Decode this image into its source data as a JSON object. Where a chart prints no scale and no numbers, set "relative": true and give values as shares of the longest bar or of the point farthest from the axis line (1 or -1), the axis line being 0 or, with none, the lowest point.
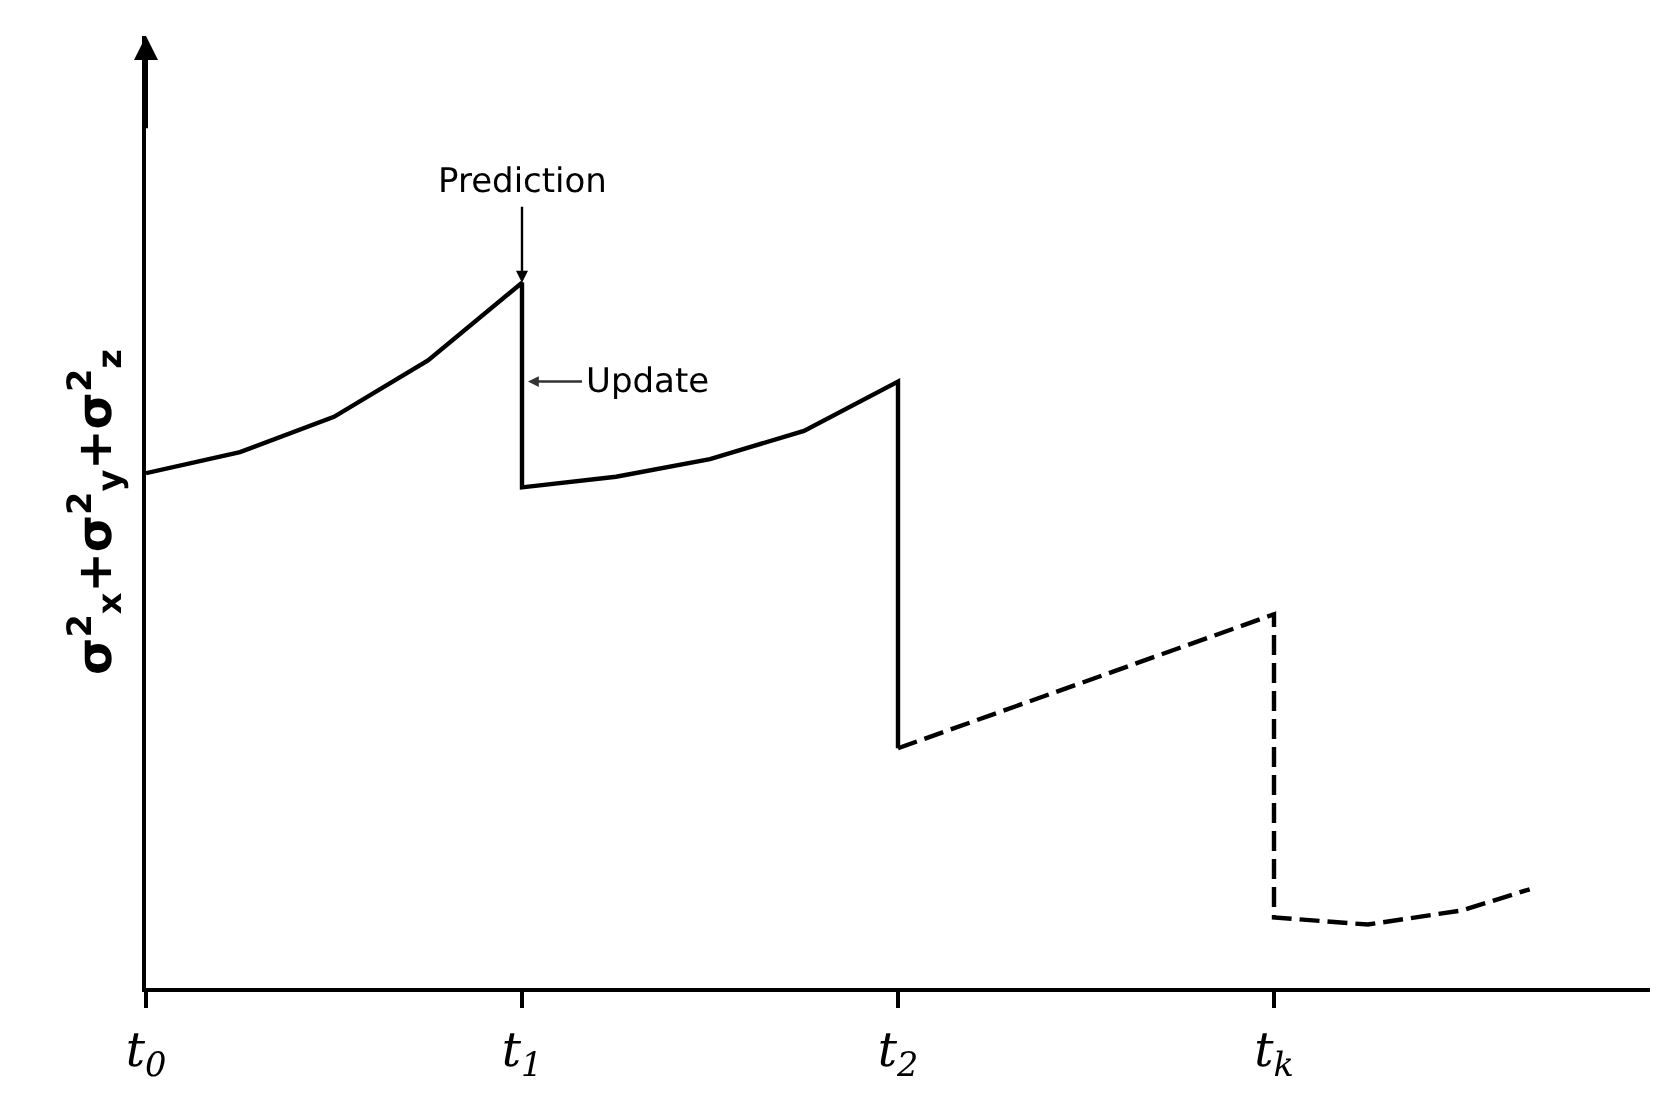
{
  "chart_data": {
    "type": "line",
    "relative": true,
    "ylabel": "σ$^{2}$$_{x}$+σ$^{2}$$_{y}$+σ$^{2}$$_{z}$",
    "xlim": [
      0,
      4
    ],
    "xticks": [
      {
        "value": 0,
        "label": "t$_{0}$"
      },
      {
        "value": 1,
        "label": "t$_{1}$"
      },
      {
        "value": 2,
        "label": "t$_{2}$"
      },
      {
        "value": 3,
        "label": "t$_{k}$"
      }
    ],
    "marker": "none",
    "series": [
      {
        "color": "#000000",
        "line_style": "solid",
        "x": [
          0,
          0.25,
          0.5,
          0.75,
          1,
          1,
          1.25,
          1.5,
          1.75,
          2,
          2
        ],
        "values": [
          0.73,
          0.76,
          0.81,
          0.89,
          1.0,
          0.71,
          0.725,
          0.75,
          0.79,
          0.86,
          0.34
        ]
      },
      {
        "color": "#000000",
        "line_style": "dashed",
        "x": [
          2,
          3,
          3,
          3.25,
          3.5,
          3.68
        ],
        "values": [
          0.34,
          0.53,
          0.1,
          0.09,
          0.11,
          0.14
        ]
      }
    ],
    "annotations": [
      {
        "text": "Prediction",
        "x": 1,
        "y": 1.0
      },
      {
        "text": "Update",
        "x": 1,
        "y": 0.86
      }
    ]
  }
}
